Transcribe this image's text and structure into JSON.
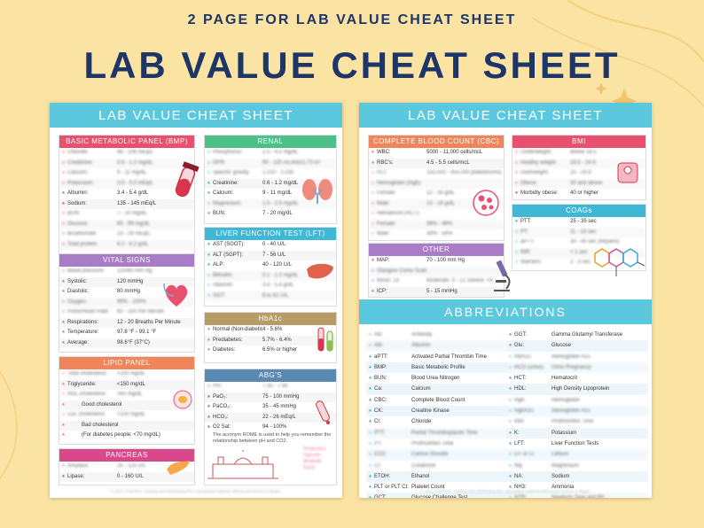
{
  "listing": {
    "caption": "2 PAGE FOR LAB VALUE CHEAT SHEET",
    "title": "LAB VALUE CHEAT SHEET"
  },
  "sheet_title": "LAB VALUE CHEAT SHEET",
  "footer": "© 2021 PrairTech. Sharing and distributing this copyrighted material without permission is illegal.",
  "page1": {
    "bmp": {
      "title": "BASIC METABOLIC PANEL (BMP)",
      "color": "#e9506e",
      "rows": [
        {
          "label": "Chloride:",
          "value": "96 - 106 mEq/L",
          "blur": true
        },
        {
          "label": "Creatinine:",
          "value": "0.6 - 1.2 mg/dL",
          "blur": true
        },
        {
          "label": "Calcium:",
          "value": "9 - 11 mg/dL",
          "blur": true
        },
        {
          "label": "Potassium:",
          "value": "3.5 - 5.0 mEq/L",
          "blur": true
        },
        {
          "label": "Albumin:",
          "value": "3.4 - 5.4 g/dL",
          "blur": false
        },
        {
          "label": "Sodium:",
          "value": "135 - 145 mEq/L",
          "blur": false
        },
        {
          "label": "BUN:",
          "value": "7 - 20 mg/dL",
          "blur": true
        },
        {
          "label": "Glucose:",
          "value": "65 - 99 mg/dL",
          "blur": true
        },
        {
          "label": "Bicarbonate:",
          "value": "23 - 29 mEq/L",
          "blur": true
        },
        {
          "label": "Total protein:",
          "value": "6.2 - 8.2 g/dL",
          "blur": true
        }
      ]
    },
    "renal": {
      "title": "RENAL",
      "color": "#4fbf8a",
      "rows": [
        {
          "label": "Phosphorus:",
          "value": "2.5 - 4.5 mg/dL",
          "blur": true
        },
        {
          "label": "GFR:",
          "value": "90 - 120 mL/min/1.73 m²",
          "blur": true
        },
        {
          "label": "Specific gravity:",
          "value": "1.010 - 1.030",
          "blur": true
        },
        {
          "label": "Creatinine:",
          "value": "0.6 - 1.2 mg/dL",
          "blur": false
        },
        {
          "label": "Calcium:",
          "value": "9 - 11 mg/dL",
          "blur": false
        },
        {
          "label": "Magnesium:",
          "value": "1.5 - 2.5 mg/dL",
          "blur": true
        },
        {
          "label": "BUN:",
          "value": "7 - 20 mg/dL",
          "blur": false
        }
      ]
    },
    "vitals": {
      "title": "VITAL SIGNS",
      "color": "#a97cc6",
      "rows": [
        {
          "label": "Blood pressure:",
          "value": "120/80 mm Hg",
          "blur": true
        },
        {
          "label": "Systolic:",
          "value": "120 mmHg",
          "blur": false
        },
        {
          "label": "Diastolic:",
          "value": "80 mmHg",
          "blur": false
        },
        {
          "label": "Oxygen:",
          "value": "95% - 100%",
          "blur": true
        },
        {
          "label": "Pulse/Heart Rate:",
          "value": "60 - 100 Per Minute",
          "blur": true
        },
        {
          "label": "Respirations:",
          "value": "12 - 20 Breaths Per Minute",
          "blur": false
        },
        {
          "label": "Temperature:",
          "value": "97.8 °F - 99.1 °F",
          "blur": false
        },
        {
          "label": "Average:",
          "value": "98.6°F (37°C)",
          "blur": false
        }
      ]
    },
    "lft": {
      "title": "LIVER FUNCTION TEST (LFT)",
      "color": "#3fb8d6",
      "rows": [
        {
          "label": "AST (SGOT):",
          "value": "0 - 40 U/L",
          "blur": false
        },
        {
          "label": "ALT (SGPT):",
          "value": "7 - 56 U/L",
          "blur": false
        },
        {
          "label": "ALP:",
          "value": "40 - 120 U/L",
          "blur": false
        },
        {
          "label": "Bilirubin:",
          "value": "0.1 - 1.2 mg/dL",
          "blur": true
        },
        {
          "label": "Albumin:",
          "value": "3.4 - 5.4 g/dL",
          "blur": true
        },
        {
          "label": "GGT:",
          "value": "8 to 61 U/L",
          "blur": true
        }
      ]
    },
    "lipid": {
      "title": "LIPID PANEL",
      "color": "#f0855b",
      "rows": [
        {
          "label": "Total cholesterol:",
          "value": "<200 mg/dL",
          "blur": true
        },
        {
          "label": "Triglyceride:",
          "value": "<150 mg/dL",
          "blur": false
        },
        {
          "label": "HDL cholesterol:",
          "value": ">60 mg/dL",
          "blur": true
        },
        {
          "label": "",
          "value": "Good cholesterol",
          "blur": false
        },
        {
          "label": "LDL cholesterol:",
          "value": "<100 mg/dL",
          "blur": true
        },
        {
          "label": "",
          "value": "Bad cholesterol",
          "blur": false
        },
        {
          "label": "",
          "value": "(For diabetes people: <70 mg/dL)",
          "blur": false
        }
      ]
    },
    "hba1c": {
      "title": "HbA1c",
      "color": "#b79c67",
      "rows": [
        {
          "label": "Normal (Non-diabetic):",
          "value": "4 - 5.6%",
          "blur": false
        },
        {
          "label": "Prediabetes:",
          "value": "5.7% - 6.4%",
          "blur": false
        },
        {
          "label": "Diabetes:",
          "value": "6.5% or higher",
          "blur": false
        }
      ]
    },
    "abgs": {
      "title": "ABG'S",
      "color": "#5a8ab4",
      "rows": [
        {
          "label": "PH:",
          "value": "7.35 - 7.45",
          "blur": true
        },
        {
          "label": "PaO₂:",
          "value": "75 - 100 mmHg",
          "blur": false
        },
        {
          "label": "PaCO₂:",
          "value": "35 - 45 mmHg",
          "blur": false
        },
        {
          "label": "HCO₃:",
          "value": "22 - 26 mEq/L",
          "blur": false
        },
        {
          "label": "O2 Sat:",
          "value": "94 - 100%",
          "blur": false
        }
      ],
      "note": "The acronym ROME is used to help you remember the relationship between pH and CO2.",
      "rome": [
        "Respiratory",
        "Opposite",
        "Metabolic",
        "Equal"
      ]
    },
    "pancreas": {
      "title": "PANCREAS",
      "color": "#d9488b",
      "rows": [
        {
          "label": "Amylase:",
          "value": "25 - 125 U/L",
          "blur": true
        },
        {
          "label": "Lipase:",
          "value": "0 - 160 U/L",
          "blur": false
        }
      ]
    }
  },
  "page2": {
    "cbc": {
      "title": "COMPLETE BLOOD COUNT (CBC)",
      "color": "#f0855b",
      "rows": [
        {
          "label": "WBC:",
          "value": "5000 - 11,000 cells/mcL",
          "blur": false
        },
        {
          "label": "RBC's:",
          "value": "4.5 - 5.5 cells/mcL",
          "blur": false
        },
        {
          "label": "PLT:",
          "value": "150,000 - 450,000 platelets/mcL",
          "blur": true
        },
        {
          "label": "Hemoglobin (Hgb):",
          "value": "",
          "blur": true
        },
        {
          "label": "Female:",
          "value": "12 - 16 g/dL",
          "blur": true
        },
        {
          "label": "Male:",
          "value": "13 - 18 g/dL",
          "blur": true
        },
        {
          "label": "Hematocrit (HCT):",
          "value": "",
          "blur": true
        },
        {
          "label": "Female:",
          "value": "36% - 48%",
          "blur": true
        },
        {
          "label": "Male:",
          "value": "39% - 54%",
          "blur": true
        }
      ]
    },
    "bmi": {
      "title": "BMI",
      "color": "#e9506e",
      "rows": [
        {
          "label": "Underweight:",
          "value": "Below 18.5",
          "blur": true
        },
        {
          "label": "Healthy weight:",
          "value": "18.5 - 24.9",
          "blur": true
        },
        {
          "label": "Overweight:",
          "value": "25 - 29.9",
          "blur": true
        },
        {
          "label": "Obese:",
          "value": "30 and above",
          "blur": true
        },
        {
          "label": "Morbidly obese:",
          "value": "40 or higher",
          "blur": false
        }
      ]
    },
    "other": {
      "title": "OTHER",
      "color": "#a97cc6",
      "rows": [
        {
          "label": "MAP:",
          "value": "70 - 100 mm Hg",
          "blur": false
        },
        {
          "label": "Glasgow Coma Scale (GCS): 15",
          "value": "",
          "blur": true
        },
        {
          "label": "Minor: 13",
          "value": "Moderate: 9 - 12   Severe: <8",
          "blur": true
        },
        {
          "label": "ICP:",
          "value": "5 - 15 mmHg",
          "blur": false
        }
      ]
    },
    "coags": {
      "title": "COAGs",
      "color": "#3fb8d6",
      "rows": [
        {
          "label": "PTT:",
          "value": "25 - 35 sec",
          "blur": false
        },
        {
          "label": "PT:",
          "value": "11 - 13 sec",
          "blur": true
        },
        {
          "label": "aPTT:",
          "value": "30 - 40 sec (heparin)",
          "blur": true
        },
        {
          "label": "INR:",
          "value": "< 1 sec",
          "blur": true
        },
        {
          "label": "Warfarin:",
          "value": "2 - 3 sec",
          "blur": true
        }
      ]
    },
    "abbreviations": {
      "title": "ABBREVIATIONS",
      "left": [
        {
          "code": "AB:",
          "meaning": "Antibody",
          "blur": true
        },
        {
          "code": "Alb:",
          "meaning": "Albumin",
          "blur": true
        },
        {
          "code": "aPTT:",
          "meaning": "Activated Partial Thrombin Time",
          "blur": false
        },
        {
          "code": "BMP:",
          "meaning": "Basic Metabolic Profile",
          "blur": false
        },
        {
          "code": "BUN:",
          "meaning": "Blood Urea Nitrogen",
          "blur": false
        },
        {
          "code": "Ca:",
          "meaning": "Calcium",
          "blur": false
        },
        {
          "code": "CBC:",
          "meaning": "Complete Blood Count",
          "blur": false
        },
        {
          "code": "CK:",
          "meaning": "Creatine Kinase",
          "blur": false
        },
        {
          "code": "Cl:",
          "meaning": "Chloride",
          "blur": false
        },
        {
          "code": "PTT:",
          "meaning": "Partial Thromboplastin Time",
          "blur": true
        },
        {
          "code": "PT:",
          "meaning": "Prothrombin Time",
          "blur": true
        },
        {
          "code": "CO2:",
          "meaning": "Carbon Dioxide",
          "blur": true
        },
        {
          "code": "Cr:",
          "meaning": "Creatinine",
          "blur": true
        },
        {
          "code": "ETOH:",
          "meaning": "Ethanol",
          "blur": false
        },
        {
          "code": "PLT or PLT Ct:",
          "meaning": "Platelet Count",
          "blur": false
        },
        {
          "code": "GCT:",
          "meaning": "Glucose Challenge Test",
          "blur": false
        }
      ],
      "right": [
        {
          "code": "GGT:",
          "meaning": "Gamma Glutamyl Transferase",
          "blur": false
        },
        {
          "code": "Glu:",
          "meaning": "Glucose",
          "blur": false
        },
        {
          "code": "HbA1c:",
          "meaning": "Hemoglobin A1c",
          "blur": true
        },
        {
          "code": "HCG (urine):",
          "meaning": "Urine Pregnancy",
          "blur": true
        },
        {
          "code": "HCT:",
          "meaning": "Hematocrit",
          "blur": false
        },
        {
          "code": "HDL:",
          "meaning": "High Density Lipoprotein",
          "blur": false
        },
        {
          "code": "Hgb:",
          "meaning": "Hemoglobin",
          "blur": true
        },
        {
          "code": "HgbA1c:",
          "meaning": "Hemoglobin A1c",
          "blur": true
        },
        {
          "code": "INR:",
          "meaning": "Prothrombin Time",
          "blur": true
        },
        {
          "code": "K:",
          "meaning": "Potassium",
          "blur": false
        },
        {
          "code": "LFT:",
          "meaning": "Liver Function Tests",
          "blur": false
        },
        {
          "code": "Li+ or Li:",
          "meaning": "Lithium",
          "blur": true
        },
        {
          "code": "Mg:",
          "meaning": "Magnesium",
          "blur": true
        },
        {
          "code": "NA:",
          "meaning": "Sodium",
          "blur": false
        },
        {
          "code": "NH3:",
          "meaning": "Ammonia",
          "blur": false
        },
        {
          "code": "NTR:",
          "meaning": "Newborn Type and Rh",
          "blur": true
        }
      ]
    }
  }
}
